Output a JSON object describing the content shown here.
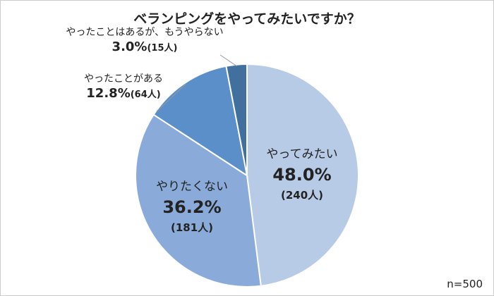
{
  "chart_data": {
    "type": "pie",
    "title": "ベランピングをやってみたいですか？",
    "note": "n=500",
    "slices": [
      {
        "label": "やってみたい",
        "percent": 48.0,
        "percent_label": "48.0%",
        "count_label": "(240人)",
        "color": "#b7cbe7"
      },
      {
        "label": "やりたくない",
        "percent": 36.2,
        "percent_label": "36.2%",
        "count_label": "(181人)",
        "color": "#8aabda"
      },
      {
        "label": "やったことがある",
        "percent": 12.8,
        "percent_label": "12.8%",
        "count_label": "(64人)",
        "color": "#5a8fc9"
      },
      {
        "label": "やったことはあるが、もうやらない",
        "percent": 3.0,
        "percent_label": "3.0%",
        "count_label": "(15人)",
        "color": "#41709f"
      }
    ]
  }
}
